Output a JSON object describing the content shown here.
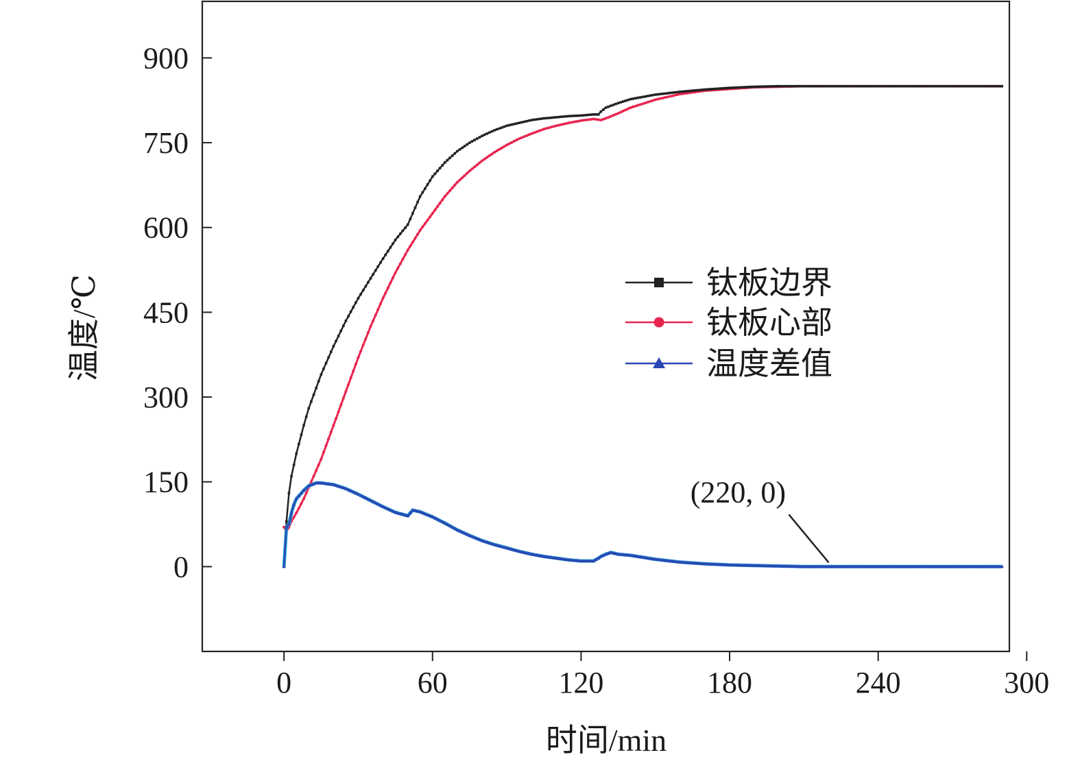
{
  "chart_data": {
    "type": "line",
    "title": "",
    "xlabel": "时间/min",
    "ylabel": "温度/℃",
    "xlim": [
      -33,
      293
    ],
    "ylim": [
      -150,
      1000
    ],
    "x_ticks": [
      0,
      60,
      120,
      180,
      240,
      300
    ],
    "y_ticks": [
      0,
      150,
      300,
      450,
      600,
      750,
      900
    ],
    "grid": false,
    "legend_position": "center-right",
    "colors": {
      "series_0": "#222222",
      "series_1": "#e8254f",
      "series_2": "#2a46b4",
      "series_2_edge": "#27a6d2"
    },
    "series": [
      {
        "name": "钛板边界",
        "marker": "square",
        "x": [
          0,
          1,
          2,
          3,
          5,
          8,
          10,
          15,
          20,
          25,
          30,
          35,
          40,
          45,
          50,
          52,
          55,
          60,
          65,
          70,
          75,
          80,
          85,
          90,
          95,
          100,
          105,
          110,
          115,
          120,
          125,
          127,
          128,
          130,
          135,
          140,
          150,
          160,
          170,
          180,
          190,
          200,
          210,
          220,
          230,
          240,
          250,
          260,
          270,
          280,
          290
        ],
        "y": [
          0,
          80,
          130,
          160,
          200,
          250,
          280,
          340,
          390,
          435,
          475,
          510,
          545,
          578,
          605,
          625,
          655,
          690,
          715,
          735,
          750,
          762,
          772,
          780,
          785,
          790,
          793,
          795,
          797,
          798,
          800,
          800,
          805,
          812,
          820,
          827,
          835,
          840,
          844,
          847,
          849,
          850,
          850,
          850,
          850,
          850,
          850,
          850,
          850,
          850,
          850
        ]
      },
      {
        "name": "钛板心部",
        "marker": "circle",
        "x": [
          0,
          1,
          2,
          3,
          5,
          8,
          10,
          15,
          20,
          25,
          30,
          35,
          40,
          45,
          50,
          55,
          60,
          65,
          70,
          75,
          80,
          85,
          90,
          95,
          100,
          105,
          110,
          115,
          120,
          125,
          128,
          130,
          135,
          140,
          150,
          160,
          170,
          180,
          190,
          200,
          210,
          220,
          230,
          240,
          250,
          260,
          270,
          280,
          290
        ],
        "y": [
          70,
          62,
          70,
          80,
          95,
          120,
          140,
          190,
          250,
          310,
          370,
          425,
          475,
          520,
          560,
          595,
          625,
          655,
          680,
          700,
          718,
          733,
          746,
          757,
          766,
          774,
          780,
          785,
          789,
          792,
          790,
          793,
          802,
          812,
          826,
          836,
          842,
          845,
          848,
          849,
          850,
          850,
          850,
          850,
          850,
          850,
          850,
          850,
          850
        ]
      },
      {
        "name": "温度差值",
        "marker": "triangle",
        "x": [
          0,
          1,
          2,
          3,
          4,
          5,
          8,
          10,
          13,
          15,
          20,
          25,
          30,
          35,
          40,
          45,
          50,
          52,
          55,
          60,
          65,
          70,
          75,
          80,
          85,
          90,
          95,
          100,
          105,
          110,
          115,
          120,
          125,
          127,
          128,
          130,
          132,
          135,
          140,
          150,
          160,
          170,
          180,
          190,
          200,
          210,
          220,
          230,
          240,
          250,
          260,
          270,
          280,
          290
        ],
        "y": [
          0,
          70,
          75,
          95,
          110,
          120,
          135,
          143,
          148,
          148,
          145,
          138,
          128,
          117,
          106,
          96,
          90,
          100,
          97,
          88,
          77,
          65,
          55,
          46,
          39,
          33,
          27,
          22,
          18,
          15,
          12,
          10,
          10,
          15,
          18,
          22,
          25,
          22,
          20,
          13,
          8,
          5,
          3,
          2,
          1,
          0,
          0,
          0,
          0,
          0,
          0,
          0,
          0,
          0
        ]
      }
    ],
    "annotations": [
      {
        "text": "(220, 0)",
        "x": 220,
        "y": 0
      }
    ]
  }
}
